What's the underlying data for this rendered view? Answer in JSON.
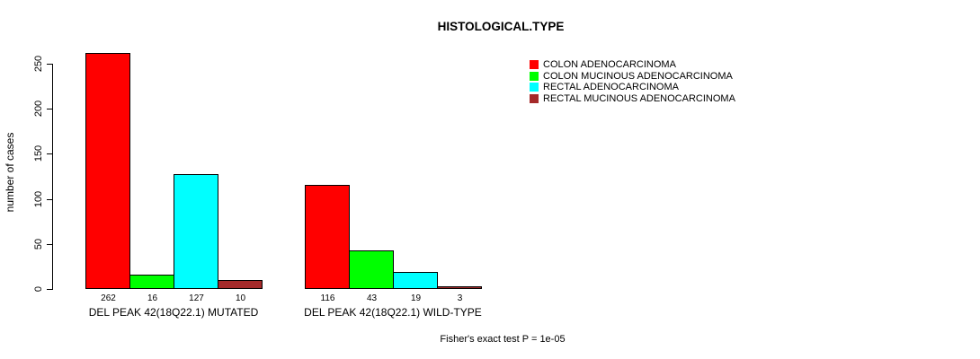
{
  "chart_data": {
    "type": "bar",
    "title": "HISTOLOGICAL.TYPE",
    "ylabel": "number of cases",
    "xlabel": "",
    "ylim": [
      0,
      250
    ],
    "yticks": [
      0,
      50,
      100,
      150,
      200,
      250
    ],
    "grid": false,
    "legend_position": "top-right",
    "categories": [
      "DEL PEAK 42(18Q22.1) MUTATED",
      "DEL PEAK 42(18Q22.1) WILD-TYPE"
    ],
    "series": [
      {
        "name": "COLON ADENOCARCINOMA",
        "color": "#FF0000",
        "values": [
          262,
          116
        ]
      },
      {
        "name": "COLON MUCINOUS ADENOCARCINOMA",
        "color": "#00FF00",
        "values": [
          16,
          43
        ]
      },
      {
        "name": "RECTAL ADENOCARCINOMA",
        "color": "#00FFFF",
        "values": [
          127,
          19
        ]
      },
      {
        "name": "RECTAL MUCINOUS ADENOCARCINOMA",
        "color": "#A52A2A",
        "values": [
          10,
          3
        ]
      }
    ],
    "bar_value_labels": [
      [
        262,
        16,
        127,
        10
      ],
      [
        116,
        43,
        19,
        3
      ]
    ],
    "annotation": "Fisher's exact test P = 1e-05",
    "colors": {
      "axis": "#000000",
      "text": "#000000",
      "background": "#FFFFFF"
    }
  }
}
